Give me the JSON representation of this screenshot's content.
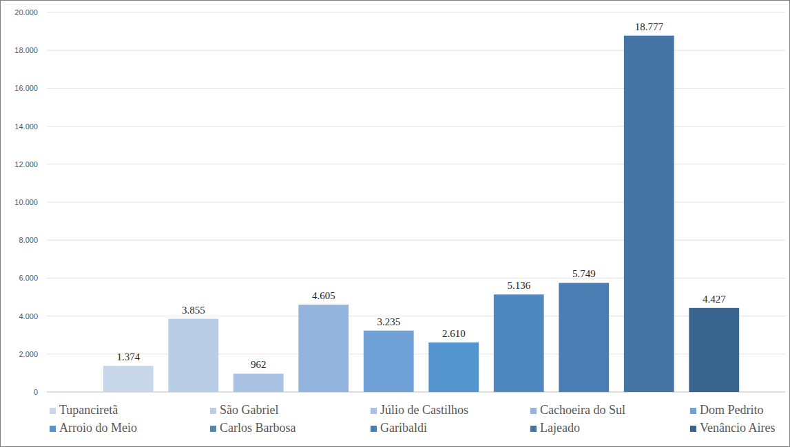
{
  "chart_data": {
    "type": "bar",
    "categories": [
      "Tupanciretã",
      "São Gabriel",
      "Júlio de Castilhos",
      "Cachoeira do Sul",
      "Dom Pedrito",
      "Arroio do Meio",
      "Carlos Barbosa",
      "Garibaldi",
      "Lajeado",
      "Venâncio Aires"
    ],
    "values": [
      1374,
      3855,
      962,
      4605,
      3235,
      2610,
      5136,
      5749,
      18777,
      4427
    ],
    "value_labels": [
      "1.374",
      "3.855",
      "962",
      "4.605",
      "3.235",
      "2.610",
      "5.136",
      "5.749",
      "18.777",
      "4.427"
    ],
    "colors": [
      "#c9d7ea",
      "#b9cde7",
      "#a9c2e3",
      "#93b4dc",
      "#6fa0d6",
      "#5595cf",
      "#4f87c1",
      "#4a7db2",
      "#4475a4",
      "#3a658f"
    ],
    "ylim": [
      0,
      20000
    ],
    "yticks": [
      0,
      {
        "value": 2000,
        "label": "2.000"
      },
      {
        "value": 4000,
        "label": "4.000"
      },
      {
        "value": 6000,
        "label": "6.000"
      },
      {
        "value": 8000,
        "label": "8.000"
      },
      {
        "value": 10000,
        "label": "10.000"
      },
      {
        "value": 12000,
        "label": "12.000"
      },
      {
        "value": 14000,
        "label": "14.000"
      },
      {
        "value": 16000,
        "label": "16.000"
      },
      {
        "value": 18000,
        "label": "18.000"
      },
      {
        "value": 20000,
        "label": "20.000"
      }
    ],
    "grid": true,
    "data_labels": true,
    "tick_labels": "y",
    "legend": "bottom"
  }
}
